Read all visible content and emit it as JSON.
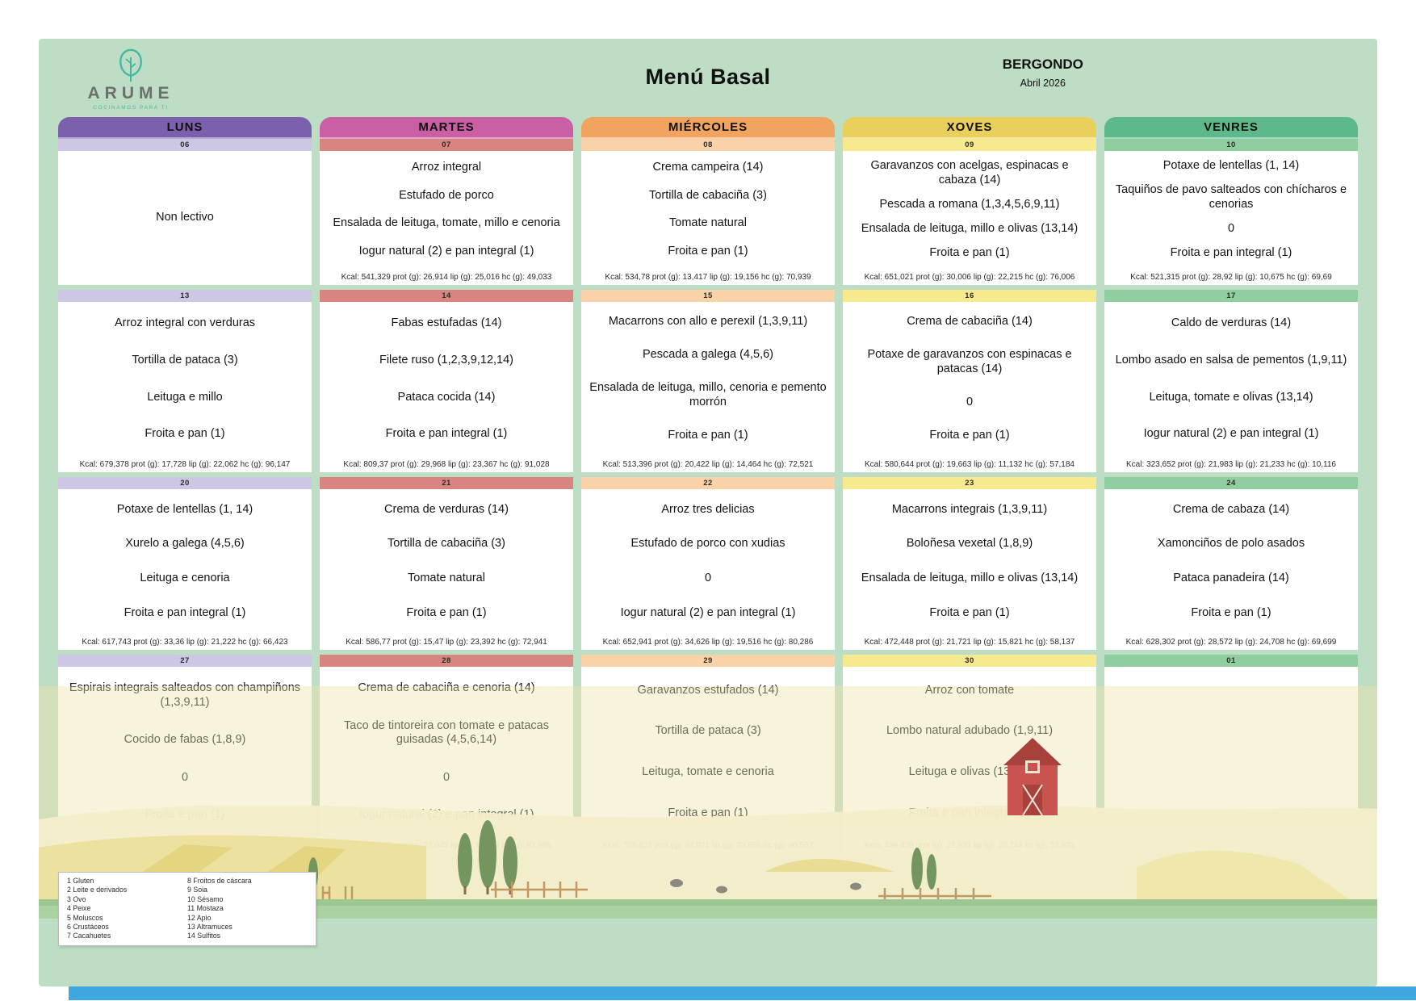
{
  "header": {
    "brand": "ARUME",
    "tagline": "COCINAMOS PARA TI",
    "title": "Menú Basal",
    "location": "BERGONDO",
    "month": "Abril 2026"
  },
  "colors": {
    "panel_green": "#bdddc5",
    "footer_blue": "#3fa7e0",
    "brand_teal": "#45b8a4"
  },
  "days": [
    {
      "label": "LUNS",
      "header_color": "#7b61ad",
      "badge_color": "#cdc6e5"
    },
    {
      "label": "MARTES",
      "header_color": "#ca5fa5",
      "badge_color": "#d8847f"
    },
    {
      "label": "MIÉRCOLES",
      "header_color": "#f0a45f",
      "badge_color": "#fad2a7"
    },
    {
      "label": "XOVES",
      "header_color": "#e9cf5b",
      "badge_color": "#f6e98e"
    },
    {
      "label": "VENRES",
      "header_color": "#5eb98a",
      "badge_color": "#8fcf9f"
    }
  ],
  "weeks": [
    {
      "cells": [
        {
          "date": "06",
          "items": [
            "Non lectivo"
          ],
          "kcal": ""
        },
        {
          "date": "07",
          "items": [
            "Arroz integral",
            "Estufado de porco",
            "Ensalada de leituga, tomate, millo e cenoria",
            "Iogur natural (2) e pan integral (1)"
          ],
          "kcal": "Kcal: 541,329 prot (g): 26,914 lip (g): 25,016 hc (g): 49,033"
        },
        {
          "date": "08",
          "items": [
            "Crema campeira (14)",
            "Tortilla de cabaciña (3)",
            "Tomate natural",
            "Froita e pan (1)"
          ],
          "kcal": "Kcal: 534,78 prot (g): 13,417 lip (g): 19,156 hc (g): 70,939"
        },
        {
          "date": "09",
          "items": [
            "Garavanzos con acelgas, espinacas e cabaza (14)",
            "Pescada a romana (1,3,4,5,6,9,11)",
            "Ensalada de leituga, millo e olivas (13,14)",
            "Froita e pan (1)"
          ],
          "kcal": "Kcal: 651,021 prot (g): 30,006 lip (g): 22,215 hc (g): 76,006"
        },
        {
          "date": "10",
          "items": [
            "Potaxe de lentellas (1, 14)",
            "Taquiños de pavo salteados con chícharos e cenorias",
            "0",
            "Froita e pan integral (1)"
          ],
          "kcal": "Kcal: 521,315 prot (g): 28,92 lip (g): 10,675 hc (g): 69,69"
        }
      ]
    },
    {
      "cells": [
        {
          "date": "13",
          "items": [
            "Arroz integral con verduras",
            "Tortilla de pataca (3)",
            "Leituga e millo",
            "Froita e pan (1)"
          ],
          "kcal": "Kcal: 679,378 prot (g): 17,728 lip (g): 22,062 hc (g): 96,147"
        },
        {
          "date": "14",
          "items": [
            "Fabas estufadas (14)",
            "Filete ruso (1,2,3,9,12,14)",
            "Pataca cocida (14)",
            "Froita e pan integral (1)"
          ],
          "kcal": "Kcal: 809,37 prot (g): 29,968 lip (g): 23,367 hc (g): 91,028"
        },
        {
          "date": "15",
          "items": [
            "Macarrons con allo e perexil (1,3,9,11)",
            "Pescada a galega (4,5,6)",
            "Ensalada de leituga, millo, cenoria e pemento morrón",
            "Froita e pan (1)"
          ],
          "kcal": "Kcal: 513,396 prot (g): 20,422 lip (g): 14,464 hc (g): 72,521"
        },
        {
          "date": "16",
          "items": [
            "Crema de cabaciña (14)",
            "Potaxe de garavanzos con espinacas e patacas (14)",
            "0",
            "Froita e pan (1)"
          ],
          "kcal": "Kcal: 580,644 prot (g): 19,663 lip (g): 11,132 hc (g): 57,184"
        },
        {
          "date": "17",
          "items": [
            "Caldo de verduras (14)",
            "Lombo asado en salsa de pementos (1,9,11)",
            "Leituga, tomate e olivas (13,14)",
            "Iogur natural (2) e pan integral (1)"
          ],
          "kcal": "Kcal: 323,652 prot (g): 21,983 lip (g): 21,233 hc (g): 10,116"
        }
      ]
    },
    {
      "cells": [
        {
          "date": "20",
          "items": [
            "Potaxe de lentellas (1, 14)",
            "Xurelo a galega (4,5,6)",
            "Leituga e cenoria",
            "Froita e pan integral (1)"
          ],
          "kcal": "Kcal: 617,743 prot (g): 33,36 lip (g): 21,222 hc (g): 66,423"
        },
        {
          "date": "21",
          "items": [
            "Crema de verduras (14)",
            "Tortilla de cabaciña (3)",
            "Tomate natural",
            "Froita e pan (1)"
          ],
          "kcal": "Kcal: 586,77 prot (g): 15,47 lip (g): 23,392 hc (g): 72,941"
        },
        {
          "date": "22",
          "items": [
            "Arroz tres delicias",
            "Estufado de porco con xudias",
            "0",
            "Iogur natural (2) e pan integral (1)"
          ],
          "kcal": "Kcal: 652,941 prot (g): 34,626 lip (g): 19,516 hc (g): 80,286"
        },
        {
          "date": "23",
          "items": [
            "Macarrons integrais (1,3,9,11)",
            "Boloñesa vexetal (1,8,9)",
            "Ensalada de leituga, millo e olivas (13,14)",
            "Froita e pan (1)"
          ],
          "kcal": "Kcal: 472,448 prot (g): 21,721 lip (g): 15,821 hc (g): 58,137"
        },
        {
          "date": "24",
          "items": [
            "Crema de cabaza (14)",
            "Xamonciños de polo asados",
            "Pataca panadeira (14)",
            "Froita e pan (1)"
          ],
          "kcal": "Kcal: 628,302 prot (g): 28,572 lip (g): 24,708 hc (g): 69,699"
        }
      ]
    },
    {
      "cells": [
        {
          "date": "27",
          "items": [
            "Espirais integrais salteados con champiñons (1,3,9,11)",
            "Cocido de fabas (1,8,9)",
            "0",
            "Froita e pan (1)"
          ],
          "kcal": "Kcal: 596,436 prot (g): 20,916 lip (g): 9,024 hc (g): 97,634"
        },
        {
          "date": "28",
          "items": [
            "Crema de cabaciña e cenoria (14)",
            "Taco de tintoreira con tomate e patacas guisadas (4,5,6,14)",
            "0",
            "Iogur natural (2) e pan integral (1)"
          ],
          "kcal": "Kcal: 566,102 prot (g): 27,043 lip (g): 11,559 hc (g): 81,996"
        },
        {
          "date": "29",
          "items": [
            "Garavanzos estufados (14)",
            "Tortilla de pataca (3)",
            "Leituga, tomate e cenoria",
            "Froita e pan (1)"
          ],
          "kcal": "Kcal: 708,823 prot (g): 24,021 lip (g): 23,686 hc (g): 90,557"
        },
        {
          "date": "30",
          "items": [
            "Arroz con tomate",
            "Lombo natural adubado (1,9,11)",
            "Leituga e olivas (13,14)",
            "Froita e pan integral (1)"
          ],
          "kcal": "Kcal: 496,429 prot (g): 21,931 lip (g): 20,748 hc (g): 52,623"
        },
        {
          "date": "01",
          "items": [],
          "kcal": ""
        }
      ]
    }
  ],
  "legend": {
    "col1": [
      "1 Gluten",
      "2 Leite e derivados",
      "3 Ovo",
      "4 Peixe",
      "5 Moluscos",
      "6 Crustáceos",
      "7 Cacahuetes"
    ],
    "col2": [
      "8 Froitos de cáscara",
      "9 Soia",
      "10 Sésamo",
      "11 Mostaza",
      "12 Apio",
      "13 Altramuces",
      "14 Sulfitos"
    ]
  }
}
